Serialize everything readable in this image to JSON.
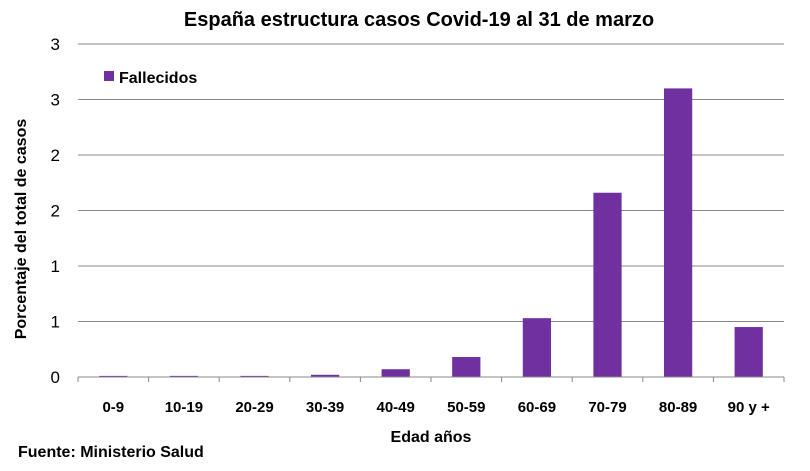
{
  "chart_data": {
    "type": "bar",
    "title": "España estructura casos Covid-19 al 31 de marzo",
    "xlabel": "Edad años",
    "ylabel": "Porcentaje del total de casos",
    "categories": [
      "0-9",
      "10-19",
      "20-29",
      "30-39",
      "40-49",
      "50-59",
      "60-69",
      "70-79",
      "80-89",
      "90 y +"
    ],
    "series": [
      {
        "name": "Fallecidos",
        "color": "#7030a0",
        "values": [
          0.01,
          0.01,
          0.01,
          0.02,
          0.07,
          0.18,
          0.53,
          1.66,
          2.6,
          0.45
        ]
      }
    ],
    "ylim": [
      0,
      3
    ],
    "yticks": [
      0,
      0.5,
      1,
      1.5,
      2,
      2.5,
      3
    ],
    "ytick_labels": [
      "0",
      "1",
      "1",
      "2",
      "2",
      "3",
      "3"
    ],
    "grid": true,
    "legend_position": "top-left"
  },
  "source": "Fuente: Ministerio Salud"
}
